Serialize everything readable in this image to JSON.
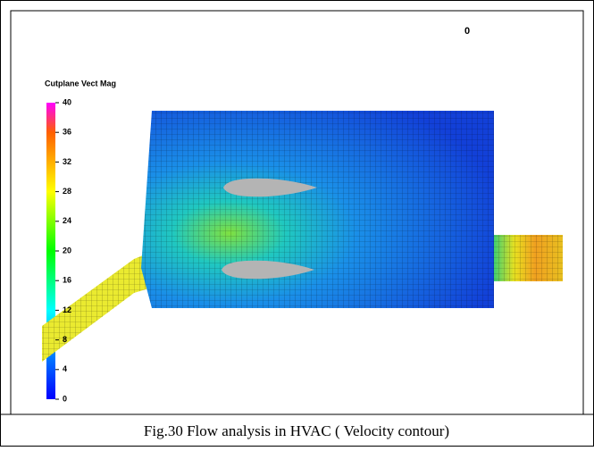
{
  "figure": {
    "corner_label": "0",
    "colorbar": {
      "title": "Cutplane Vect Mag",
      "range": [
        0,
        40
      ],
      "ticks": [
        0,
        4,
        8,
        12,
        16,
        20,
        24,
        28,
        32,
        36,
        40
      ]
    },
    "caption": "Fig.30 Flow analysis in HVAC ( Velocity contour)"
  }
}
